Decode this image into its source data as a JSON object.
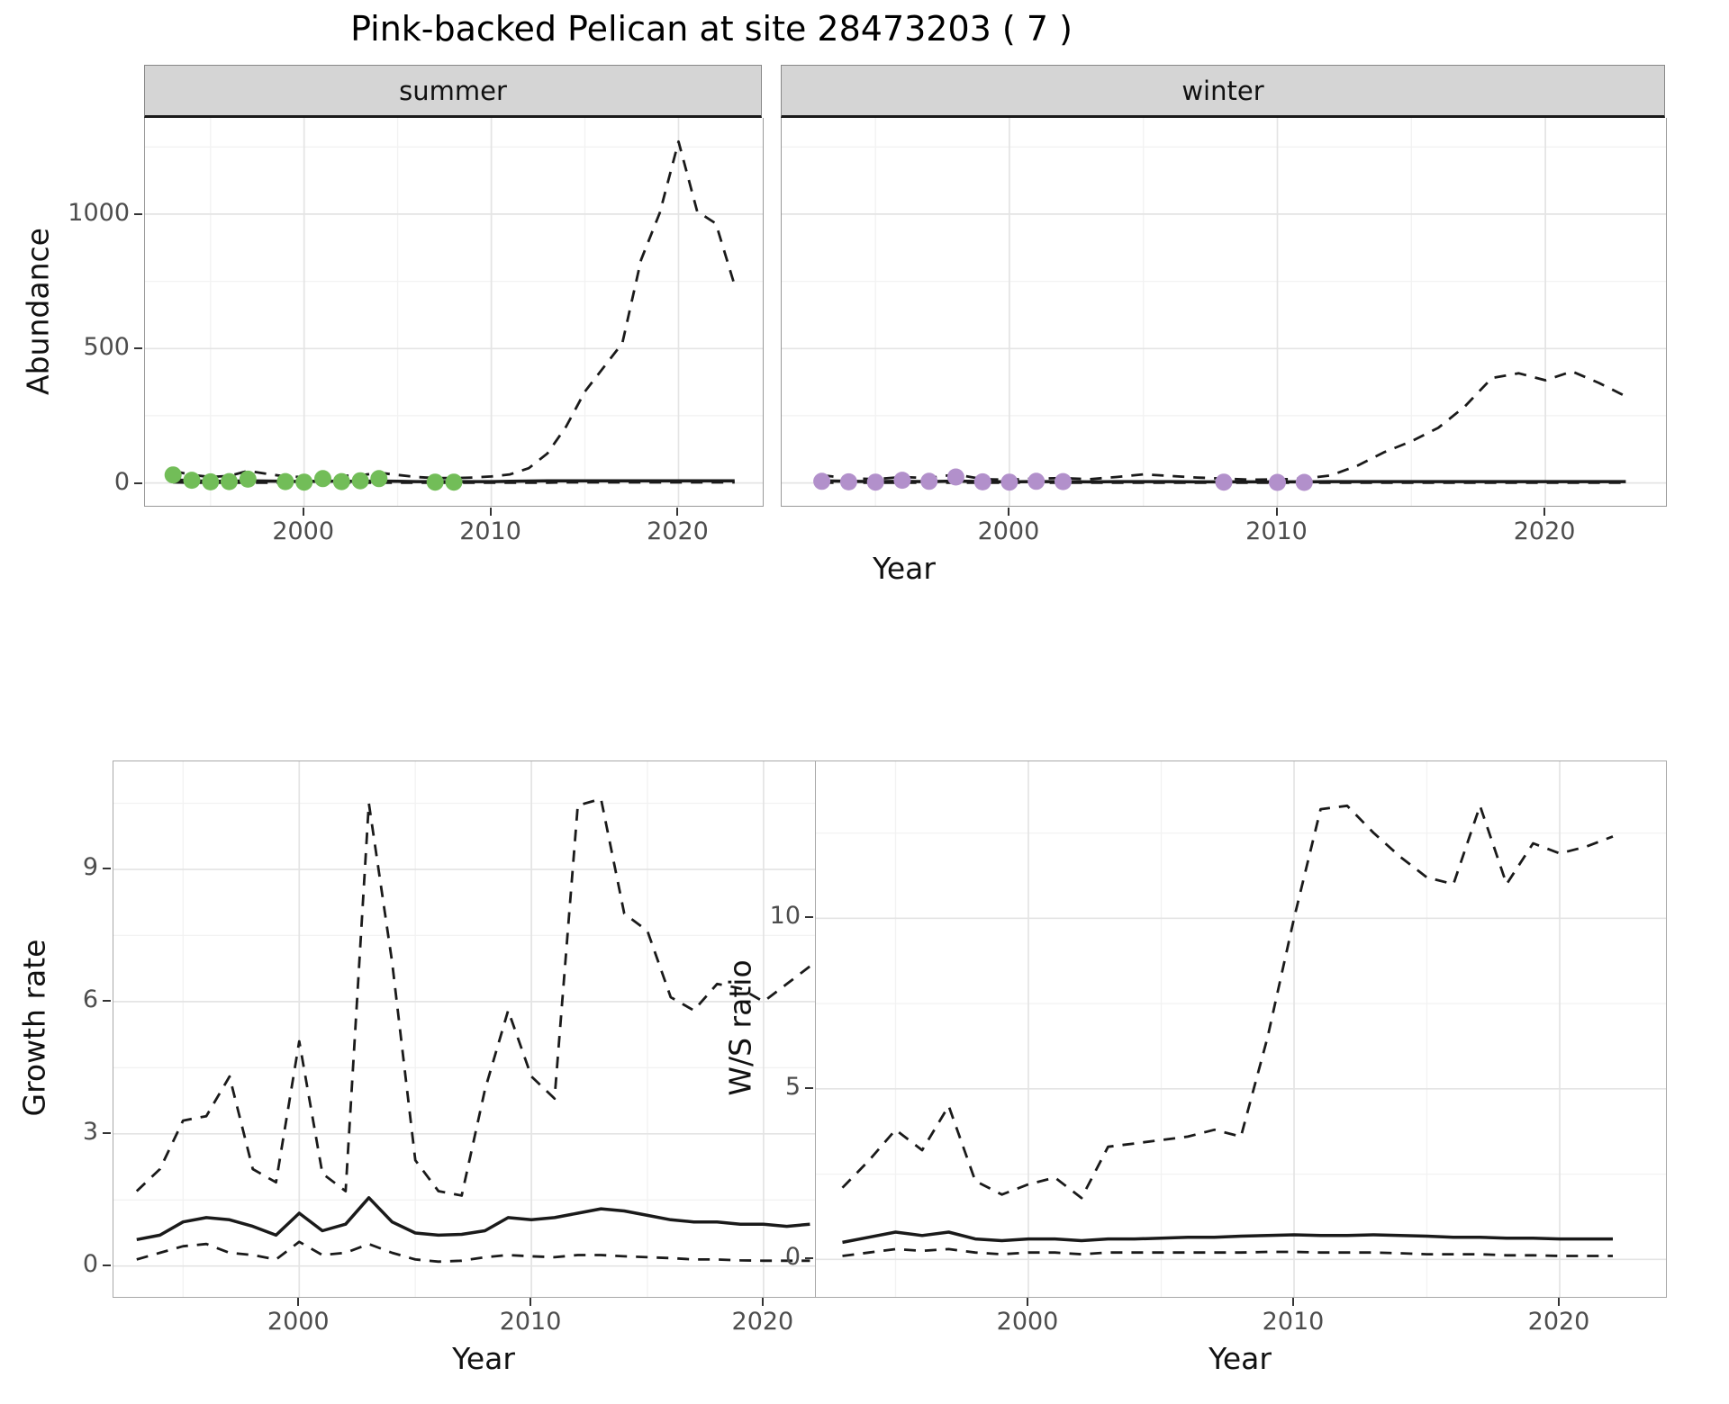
{
  "title": "Pink-backed Pelican at site 28473203 ( 7 )",
  "style": {
    "line": "#1a1a1a",
    "grid_major": "#e4e4e4",
    "grid_minor": "#f2f2f2",
    "strip_bg": "#d5d5d5",
    "tick_text": "#4d4d4d",
    "summer_points": "#72bd58",
    "winter_points": "#b290cb"
  },
  "panels": {
    "abundance": {
      "ylabel": "Abundance",
      "xlabel": "Year",
      "facets": [
        "summer",
        "winter"
      ]
    },
    "growth": {
      "ylabel": "Growth rate",
      "xlabel": "Year"
    },
    "ws": {
      "ylabel": "W/S ratio",
      "xlabel": "Year"
    }
  },
  "chart_data": [
    {
      "id": "summer-abundance",
      "target": "chart-summer",
      "type": "line",
      "facet": "summer",
      "title": "Pink-backed Pelican at site 28473203 ( 7 )",
      "xlabel": "Year",
      "ylabel": "Abundance",
      "xlim": [
        1991.5,
        2024.5
      ],
      "ylim": [
        -85,
        1358
      ],
      "xticks": [
        2000,
        2010,
        2020
      ],
      "yticks": [
        0,
        500,
        1000
      ],
      "xticks_minor": [
        1995,
        2005,
        2015
      ],
      "yticks_minor": [
        250,
        750,
        1250
      ],
      "yticks_visible": true,
      "x": [
        1993,
        1994,
        1995,
        1996,
        1997,
        1998,
        1999,
        2000,
        2001,
        2002,
        2003,
        2004,
        2005,
        2006,
        2007,
        2008,
        2009,
        2010,
        2011,
        2012,
        2013,
        2014,
        2015,
        2016,
        2017,
        2018,
        2019,
        2020,
        2021,
        2022,
        2023
      ],
      "series": [
        {
          "name": "upper_ci",
          "style": "dashed",
          "y": [
            45,
            30,
            22,
            26,
            45,
            34,
            24,
            22,
            32,
            26,
            28,
            38,
            30,
            22,
            18,
            18,
            20,
            24,
            32,
            55,
            110,
            210,
            340,
            430,
            520,
            830,
            1005,
            1270,
            1010,
            965,
            735
          ]
        },
        {
          "name": "median",
          "style": "solid",
          "y": [
            12,
            8,
            6,
            6,
            8,
            7,
            6,
            5,
            7,
            6,
            6,
            7,
            6,
            5,
            5,
            5,
            5,
            5,
            6,
            7,
            8,
            8,
            8,
            8,
            8,
            8,
            8,
            8,
            8,
            8,
            8
          ]
        },
        {
          "name": "lower_ci",
          "style": "dashed",
          "y": [
            2,
            1,
            1,
            1,
            1,
            1,
            1,
            1,
            1,
            1,
            1,
            1,
            1,
            1,
            1,
            1,
            1,
            1,
            1,
            1,
            1,
            2,
            2,
            2,
            2,
            2,
            2,
            2,
            2,
            2,
            2
          ]
        },
        {
          "name": "observed",
          "style": "points",
          "color": "#72bd58",
          "x": [
            1993,
            1994,
            1995,
            1996,
            1997,
            1999,
            2000,
            2001,
            2002,
            2003,
            2004,
            2007,
            2008
          ],
          "y": [
            30,
            10,
            4,
            5,
            14,
            5,
            3,
            16,
            5,
            8,
            16,
            3,
            3
          ]
        }
      ]
    },
    {
      "id": "winter-abundance",
      "target": "chart-winter",
      "type": "line",
      "facet": "winter",
      "xlabel": "Year",
      "ylabel": "Abundance",
      "xlim": [
        1991.5,
        2024.5
      ],
      "ylim": [
        -85,
        1358
      ],
      "xticks": [
        2000,
        2010,
        2020
      ],
      "yticks": [
        0,
        500,
        1000
      ],
      "xticks_minor": [
        1995,
        2005,
        2015
      ],
      "yticks_minor": [
        250,
        750,
        1250
      ],
      "yticks_visible": false,
      "x": [
        1993,
        1994,
        1995,
        1996,
        1997,
        1998,
        1999,
        2000,
        2001,
        2002,
        2003,
        2004,
        2005,
        2006,
        2007,
        2008,
        2009,
        2010,
        2011,
        2012,
        2013,
        2014,
        2015,
        2016,
        2017,
        2018,
        2019,
        2020,
        2021,
        2022,
        2023
      ],
      "series": [
        {
          "name": "upper_ci",
          "style": "dashed",
          "y": [
            28,
            18,
            14,
            22,
            18,
            32,
            14,
            12,
            16,
            18,
            14,
            22,
            32,
            26,
            20,
            16,
            12,
            13,
            16,
            28,
            65,
            115,
            155,
            205,
            285,
            390,
            408,
            382,
            415,
            372,
            322
          ]
        },
        {
          "name": "median",
          "style": "solid",
          "y": [
            8,
            6,
            5,
            6,
            5,
            7,
            5,
            4,
            5,
            5,
            4,
            5,
            5,
            5,
            4,
            4,
            4,
            4,
            4,
            5,
            5,
            5,
            5,
            5,
            5,
            5,
            5,
            5,
            5,
            5,
            5
          ]
        },
        {
          "name": "lower_ci",
          "style": "dashed",
          "y": [
            1,
            1,
            1,
            1,
            1,
            1,
            1,
            1,
            1,
            1,
            1,
            1,
            1,
            1,
            1,
            1,
            1,
            1,
            1,
            1,
            1,
            1,
            1,
            1,
            1,
            1,
            1,
            1,
            1,
            1,
            1
          ]
        },
        {
          "name": "observed",
          "style": "points",
          "color": "#b290cb",
          "x": [
            1993,
            1994,
            1995,
            1996,
            1997,
            1998,
            1999,
            2000,
            2001,
            2002,
            2008,
            2010,
            2011
          ],
          "y": [
            6,
            4,
            3,
            10,
            6,
            22,
            4,
            3,
            6,
            5,
            3,
            2,
            2
          ]
        }
      ]
    },
    {
      "id": "growth-rate",
      "target": "chart-growth",
      "type": "line",
      "xlabel": "Year",
      "ylabel": "Growth rate",
      "xlim": [
        1992,
        2024
      ],
      "ylim": [
        -0.7,
        11.45
      ],
      "xticks": [
        2000,
        2010,
        2020
      ],
      "yticks": [
        0,
        3,
        6,
        9
      ],
      "xticks_minor": [
        1995,
        2005,
        2015
      ],
      "yticks_minor": [
        1.5,
        4.5,
        7.5,
        10.5
      ],
      "yticks_visible": true,
      "x": [
        1993,
        1994,
        1995,
        1996,
        1997,
        1998,
        1999,
        2000,
        2001,
        2002,
        2003,
        2004,
        2005,
        2006,
        2007,
        2008,
        2009,
        2010,
        2011,
        2012,
        2013,
        2014,
        2015,
        2016,
        2017,
        2018,
        2019,
        2020,
        2021,
        2022
      ],
      "series": [
        {
          "name": "upper_ci",
          "style": "dashed",
          "y": [
            1.7,
            2.2,
            3.3,
            3.4,
            4.3,
            2.2,
            1.9,
            5.1,
            2.1,
            1.7,
            10.5,
            6.9,
            2.4,
            1.7,
            1.6,
            4.0,
            5.8,
            4.3,
            3.8,
            10.45,
            10.6,
            8.0,
            7.6,
            6.1,
            5.8,
            6.4,
            6.3,
            6.0,
            6.4,
            6.8
          ]
        },
        {
          "name": "median",
          "style": "solid",
          "y": [
            0.6,
            0.7,
            1.0,
            1.1,
            1.05,
            0.9,
            0.7,
            1.2,
            0.8,
            0.95,
            1.55,
            1.0,
            0.75,
            0.7,
            0.72,
            0.8,
            1.1,
            1.05,
            1.1,
            1.2,
            1.3,
            1.25,
            1.15,
            1.05,
            1.0,
            1.0,
            0.95,
            0.95,
            0.9,
            0.95
          ]
        },
        {
          "name": "lower_ci",
          "style": "dashed",
          "y": [
            0.15,
            0.3,
            0.45,
            0.5,
            0.3,
            0.25,
            0.15,
            0.55,
            0.25,
            0.3,
            0.5,
            0.3,
            0.15,
            0.1,
            0.12,
            0.2,
            0.25,
            0.22,
            0.2,
            0.25,
            0.25,
            0.22,
            0.2,
            0.18,
            0.15,
            0.15,
            0.13,
            0.12,
            0.12,
            0.12
          ]
        }
      ]
    },
    {
      "id": "ws-ratio",
      "target": "chart-ws",
      "type": "line",
      "xlabel": "Year",
      "ylabel": "W/S ratio",
      "xlim": [
        1992,
        2024
      ],
      "ylim": [
        -1.1,
        14.6
      ],
      "xticks": [
        2000,
        2010,
        2020
      ],
      "yticks": [
        0,
        5,
        10
      ],
      "xticks_minor": [
        1995,
        2005,
        2015
      ],
      "yticks_minor": [
        2.5,
        7.5,
        12.5
      ],
      "yticks_visible": true,
      "x": [
        1993,
        1994,
        1995,
        1996,
        1997,
        1998,
        1999,
        2000,
        2001,
        2002,
        2003,
        2004,
        2005,
        2006,
        2007,
        2008,
        2009,
        2010,
        2011,
        2012,
        2013,
        2014,
        2015,
        2016,
        2017,
        2018,
        2019,
        2020,
        2021,
        2022
      ],
      "series": [
        {
          "name": "upper_ci",
          "style": "dashed",
          "y": [
            2.1,
            2.9,
            3.8,
            3.2,
            4.5,
            2.3,
            1.9,
            2.2,
            2.4,
            1.8,
            3.3,
            3.4,
            3.5,
            3.6,
            3.8,
            3.6,
            6.5,
            10.0,
            13.2,
            13.3,
            12.5,
            11.8,
            11.2,
            11.0,
            13.3,
            11.0,
            12.2,
            11.9,
            12.1,
            12.4
          ]
        },
        {
          "name": "median",
          "style": "solid",
          "y": [
            0.5,
            0.65,
            0.8,
            0.7,
            0.8,
            0.6,
            0.55,
            0.6,
            0.6,
            0.55,
            0.6,
            0.6,
            0.62,
            0.65,
            0.65,
            0.68,
            0.7,
            0.72,
            0.7,
            0.7,
            0.72,
            0.7,
            0.68,
            0.65,
            0.65,
            0.62,
            0.62,
            0.6,
            0.6,
            0.6
          ]
        },
        {
          "name": "lower_ci",
          "style": "dashed",
          "y": [
            0.1,
            0.2,
            0.3,
            0.25,
            0.3,
            0.2,
            0.15,
            0.2,
            0.2,
            0.15,
            0.2,
            0.2,
            0.2,
            0.2,
            0.2,
            0.2,
            0.22,
            0.22,
            0.2,
            0.2,
            0.2,
            0.18,
            0.15,
            0.15,
            0.15,
            0.12,
            0.12,
            0.1,
            0.1,
            0.1
          ]
        }
      ]
    }
  ]
}
